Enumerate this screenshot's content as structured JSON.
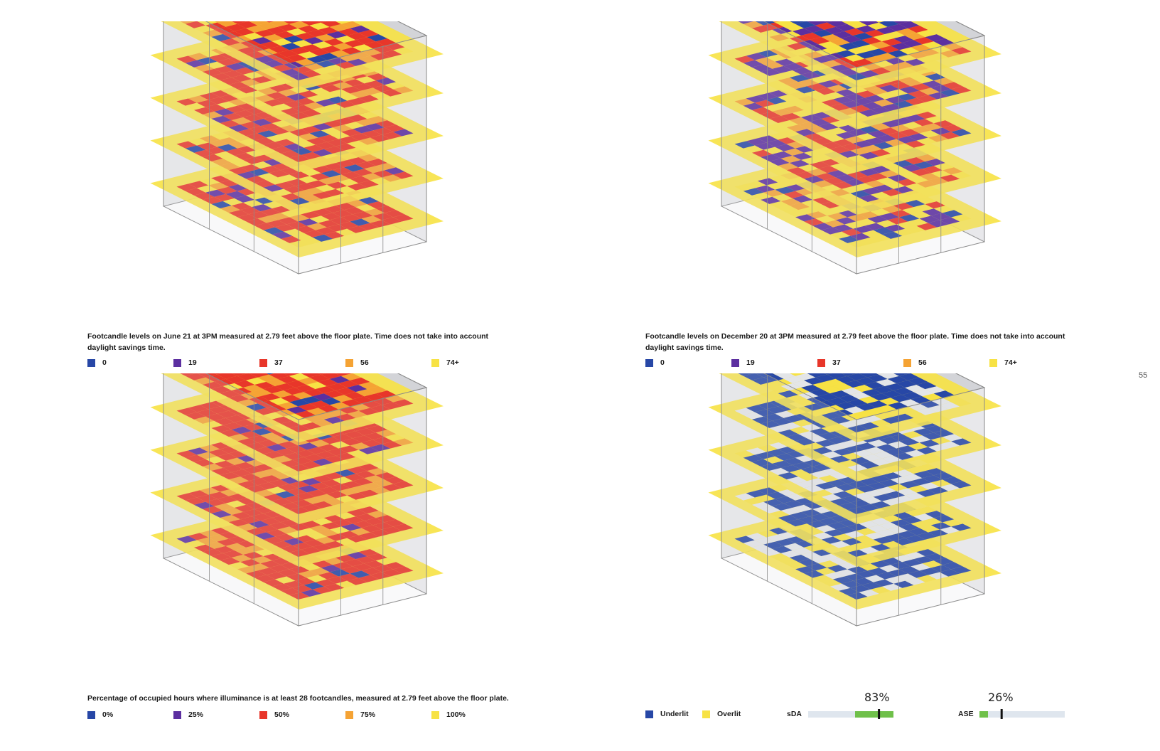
{
  "page_number": "55",
  "colors": {
    "c0": "#2747a6",
    "c19": "#5c2fa0",
    "c37": "#e8362a",
    "c56": "#f5a334",
    "c74": "#f7e244",
    "underlit": "#2747a6",
    "overlit": "#f7e244",
    "glass": "#d8dadd",
    "edge": "#8a8a8a"
  },
  "panels": [
    {
      "caption": "Footcandle levels on June 21 at 3PM measured at 2.79 feet above the floor plate. Time does not take into account daylight savings time.",
      "legend": [
        {
          "label": "0",
          "color": "#2747a6"
        },
        {
          "label": "19",
          "color": "#5c2fa0"
        },
        {
          "label": "37",
          "color": "#e8362a"
        },
        {
          "label": "56",
          "color": "#f5a334"
        },
        {
          "label": "74+",
          "color": "#f7e244"
        }
      ]
    },
    {
      "caption": "Footcandle levels on December 20 at 3PM measured at 2.79 feet above the floor plate. Time does not take into account daylight savings time.",
      "legend": [
        {
          "label": "0",
          "color": "#2747a6"
        },
        {
          "label": "19",
          "color": "#5c2fa0"
        },
        {
          "label": "37",
          "color": "#e8362a"
        },
        {
          "label": "56",
          "color": "#f5a334"
        },
        {
          "label": "74+",
          "color": "#f7e244"
        }
      ]
    },
    {
      "caption": "Percentage of occupied hours where illuminance is at least 28 footcandles, measured at 2.79 feet above the floor plate.",
      "legend": [
        {
          "label": "0%",
          "color": "#2747a6"
        },
        {
          "label": "25%",
          "color": "#5c2fa0"
        },
        {
          "label": "50%",
          "color": "#e8362a"
        },
        {
          "label": "75%",
          "color": "#f5a334"
        },
        {
          "label": "100%",
          "color": "#f7e244"
        }
      ]
    },
    {
      "legend": [
        {
          "label": "Underlit",
          "color": "#2747a6"
        },
        {
          "label": "Overlit",
          "color": "#f7e244"
        }
      ],
      "metrics": [
        {
          "label": "sDA",
          "value": "83%",
          "fraction": 0.83
        },
        {
          "label": "ASE",
          "value": "26%",
          "fraction": 0.26
        }
      ]
    }
  ]
}
